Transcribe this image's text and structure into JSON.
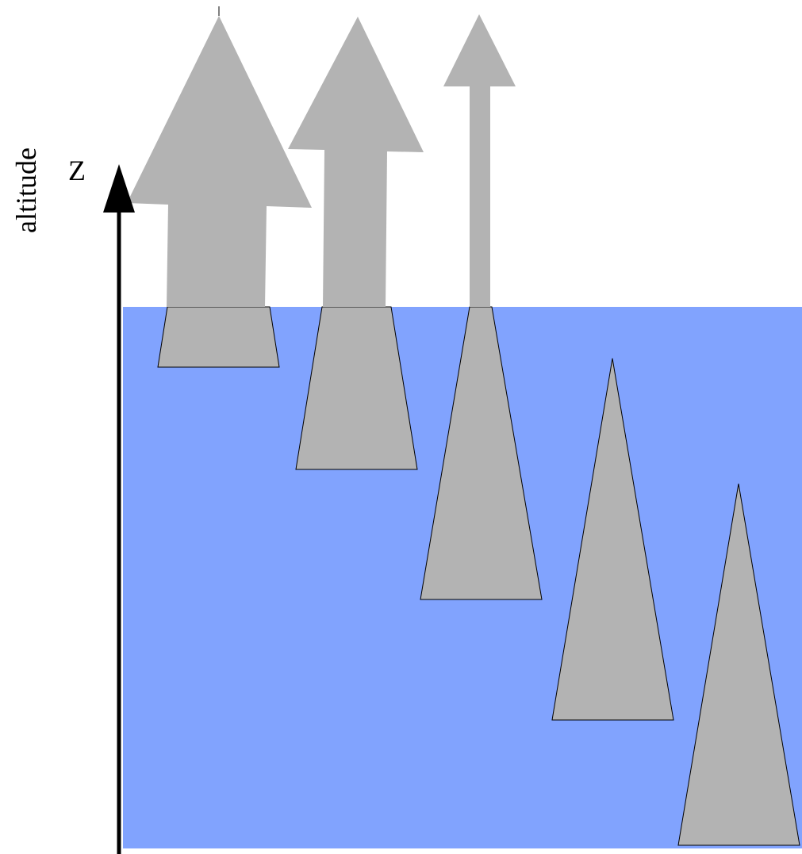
{
  "axis": {
    "name_label": "altitude",
    "symbol_label": "Z"
  },
  "colors": {
    "water": "#81a3fe",
    "shape_fill": "#b3b3b3",
    "shape_stroke": "#000000",
    "axis": "#000000",
    "background": "#ffffff"
  },
  "shapes": [
    {
      "kind": "cone",
      "submerged": true
    },
    {
      "kind": "cone",
      "submerged": true
    },
    {
      "kind": "cone",
      "submerged": true
    },
    {
      "kind": "cone",
      "submerged": true
    },
    {
      "kind": "cone",
      "submerged": true
    },
    {
      "kind": "up-arrow",
      "emerged": true
    },
    {
      "kind": "up-arrow",
      "emerged": true
    },
    {
      "kind": "up-arrow",
      "emerged": true
    }
  ]
}
